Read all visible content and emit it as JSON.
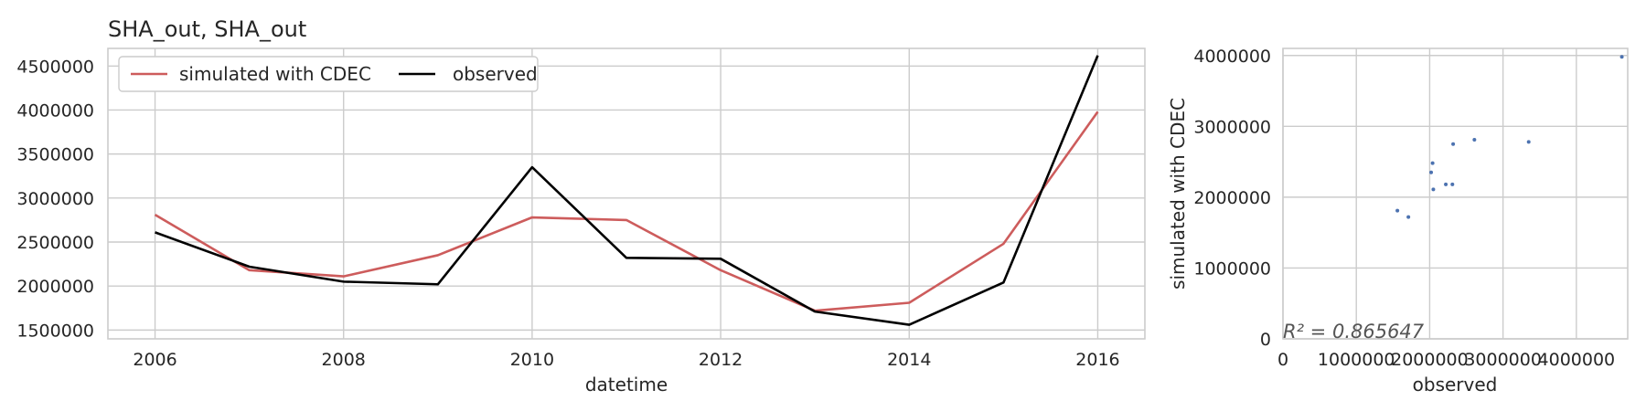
{
  "chart_data": [
    {
      "type": "line",
      "title": "SHA_out, SHA_out",
      "xlabel": "datetime",
      "ylabel": "",
      "x": [
        2006,
        2007,
        2008,
        2009,
        2010,
        2011,
        2012,
        2013,
        2014,
        2015,
        2016
      ],
      "xlim": [
        2005.5,
        2016.5
      ],
      "ylim": [
        1400000,
        4700000
      ],
      "xticks": [
        2006,
        2008,
        2010,
        2012,
        2014,
        2016
      ],
      "xtick_labels": [
        "2006",
        "2008",
        "2010",
        "2012",
        "2014",
        "2016"
      ],
      "yticks": [
        1500000,
        2000000,
        2500000,
        3000000,
        3500000,
        4000000,
        4500000
      ],
      "ytick_labels": [
        "1500000",
        "2000000",
        "2500000",
        "3000000",
        "3500000",
        "4000000",
        "4500000"
      ],
      "grid": true,
      "legend": "upper-left",
      "series": [
        {
          "name": "simulated with CDEC",
          "color": "#cd5c5c",
          "values": [
            2810000,
            2180000,
            2110000,
            2350000,
            2780000,
            2750000,
            2180000,
            1720000,
            1810000,
            2480000,
            3980000
          ]
        },
        {
          "name": "observed",
          "color": "#000000",
          "values": [
            2610000,
            2220000,
            2050000,
            2020000,
            3350000,
            2320000,
            2310000,
            1710000,
            1560000,
            2040000,
            4620000
          ]
        }
      ]
    },
    {
      "type": "scatter",
      "title": "",
      "xlabel": "observed",
      "ylabel": "simulated with CDEC",
      "xlim": [
        0,
        4700000
      ],
      "ylim": [
        0,
        4100000
      ],
      "xticks": [
        0,
        1000000,
        2000000,
        3000000,
        4000000
      ],
      "xtick_labels": [
        "0",
        "1000000",
        "2000000",
        "3000000",
        "4000000"
      ],
      "yticks": [
        0,
        1000000,
        2000000,
        3000000,
        4000000
      ],
      "ytick_labels": [
        "0",
        "1000000",
        "2000000",
        "3000000",
        "4000000"
      ],
      "grid": true,
      "point_color": "#4c72b0",
      "annotation": "R² = 0.865647",
      "points": [
        {
          "x": 1560000,
          "y": 1810000
        },
        {
          "x": 1710000,
          "y": 1720000
        },
        {
          "x": 2020000,
          "y": 2350000
        },
        {
          "x": 2040000,
          "y": 2480000
        },
        {
          "x": 2050000,
          "y": 2110000
        },
        {
          "x": 2220000,
          "y": 2180000
        },
        {
          "x": 2310000,
          "y": 2180000
        },
        {
          "x": 2320000,
          "y": 2750000
        },
        {
          "x": 2610000,
          "y": 2810000
        },
        {
          "x": 3350000,
          "y": 2780000
        },
        {
          "x": 4620000,
          "y": 3980000
        }
      ]
    }
  ]
}
